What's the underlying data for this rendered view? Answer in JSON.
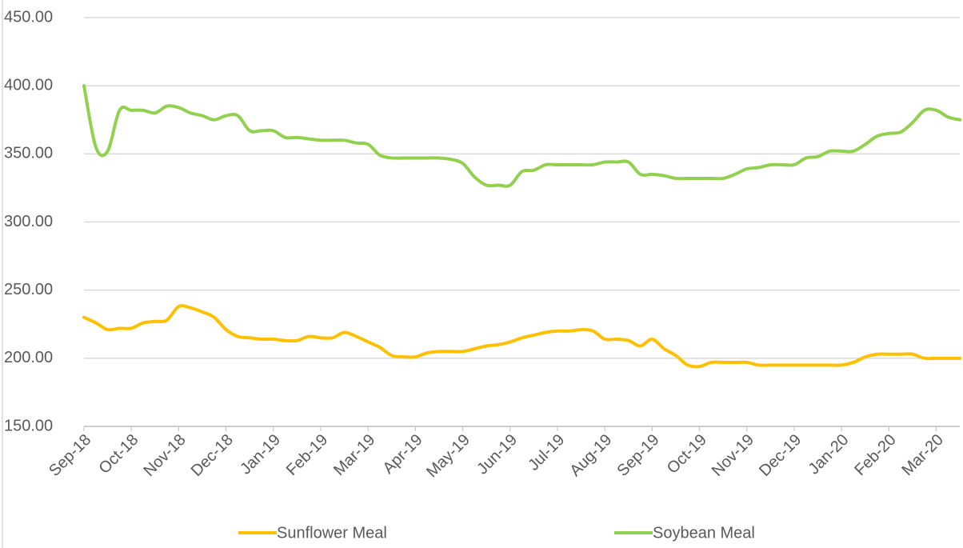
{
  "chart_data": {
    "type": "line",
    "categories": [
      "Sep-18",
      null,
      null,
      null,
      "Oct-18",
      null,
      null,
      null,
      "Nov-18",
      null,
      null,
      null,
      "Dec-18",
      null,
      null,
      null,
      "Jan-19",
      null,
      null,
      null,
      "Feb-19",
      null,
      null,
      null,
      "Mar-19",
      null,
      null,
      null,
      "Apr-19",
      null,
      null,
      null,
      "May-19",
      null,
      null,
      null,
      "Jun-19",
      null,
      null,
      null,
      "Jul-19",
      null,
      null,
      null,
      "Aug-19",
      null,
      null,
      null,
      "Sep-19",
      null,
      null,
      null,
      "Oct-19",
      null,
      null,
      null,
      "Nov-19",
      null,
      null,
      null,
      "Dec-19",
      null,
      null,
      null,
      "Jan-20",
      null,
      null,
      null,
      "Feb-20",
      null,
      null,
      null,
      "Mar-20",
      null,
      null
    ],
    "series": [
      {
        "name": "Sunflower Meal",
        "color": "#FFC000",
        "values": [
          230,
          226,
          221,
          222,
          222,
          226,
          227,
          228,
          238,
          237,
          234,
          230,
          221,
          216,
          215,
          214,
          214,
          213,
          213,
          216,
          215,
          215,
          219,
          216,
          212,
          208,
          202,
          201,
          201,
          204,
          205,
          205,
          205,
          207,
          209,
          210,
          212,
          215,
          217,
          219,
          220,
          220,
          221,
          220,
          214,
          214,
          213,
          209,
          214,
          207,
          202,
          195,
          194,
          197,
          197,
          197,
          197,
          195,
          195,
          195,
          195,
          195,
          195,
          195,
          195,
          197,
          201,
          203,
          203,
          203,
          203,
          200,
          200,
          200,
          200
        ]
      },
      {
        "name": "Soybean Meal",
        "color": "#92D050",
        "values": [
          400,
          355,
          352,
          382,
          382,
          382,
          380,
          385,
          384,
          380,
          378,
          375,
          378,
          378,
          367,
          367,
          367,
          362,
          362,
          361,
          360,
          360,
          360,
          358,
          357,
          349,
          347,
          347,
          347,
          347,
          347,
          346,
          343,
          333,
          327,
          327,
          327,
          337,
          338,
          342,
          342,
          342,
          342,
          342,
          344,
          344,
          344,
          335,
          335,
          334,
          332,
          332,
          332,
          332,
          332,
          335,
          339,
          340,
          342,
          342,
          342,
          347,
          348,
          352,
          352,
          352,
          357,
          363,
          365,
          366,
          373,
          382,
          382,
          377,
          375
        ]
      }
    ],
    "ylim": [
      150,
      450
    ],
    "yticks": [
      {
        "value": 150,
        "label": "150.00"
      },
      {
        "value": 200,
        "label": "200.00"
      },
      {
        "value": 250,
        "label": "250.00"
      },
      {
        "value": 300,
        "label": "300.00"
      },
      {
        "value": 350,
        "label": "350.00"
      },
      {
        "value": 400,
        "label": "400.00"
      },
      {
        "value": 450,
        "label": "450.00"
      }
    ],
    "grid": true,
    "legend": "bottom"
  }
}
